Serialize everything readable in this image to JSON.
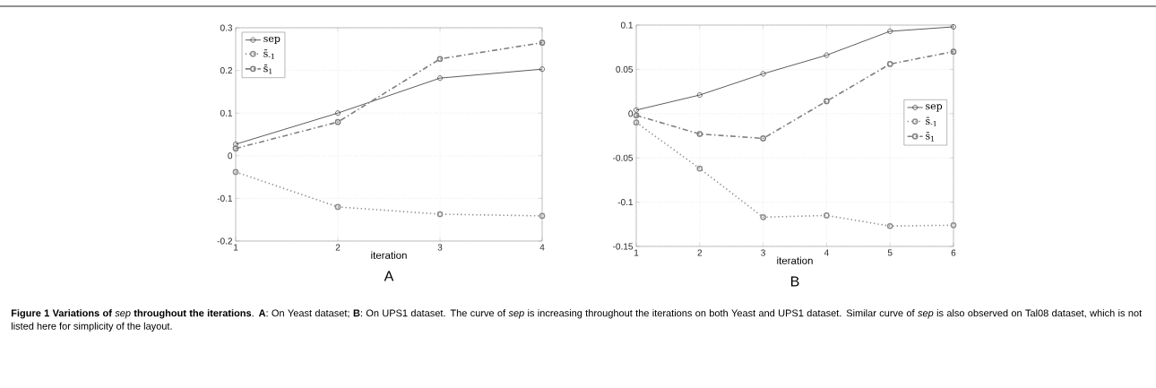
{
  "chart_data": [
    {
      "type": "line",
      "title": "A",
      "xlabel": "iteration",
      "x": [
        1,
        2,
        3,
        4
      ],
      "xlim": [
        1,
        4
      ],
      "xticks": [
        1,
        2,
        3,
        4
      ],
      "ylim": [
        -0.2,
        0.3
      ],
      "yticks": [
        -0.2,
        -0.1,
        0,
        0.1,
        0.2,
        0.3
      ],
      "grid": true,
      "legend": "top left",
      "series": [
        {
          "name": "sep",
          "color": "#333333",
          "marker": "circle",
          "line_style": "solid",
          "values": [
            0.027,
            0.1,
            0.182,
            0.203
          ]
        },
        {
          "name": "s̄$_{-1}$",
          "color": "#8c8c8c",
          "marker": "circle",
          "line_style": "dotted",
          "values": [
            -0.038,
            -0.12,
            -0.137,
            -0.141
          ]
        },
        {
          "name": "s̄$_{1}$",
          "color": "#7f7f7f",
          "marker": "circle",
          "line_style": "dashdot",
          "values": [
            0.017,
            0.079,
            0.227,
            0.265
          ]
        }
      ],
      "annotations": [
        "**Figure 1 Variations of** *sep* **throughout the iterations**. **A**: On Yeast dataset; **B**: On UPS1 dataset. The curve of *sep* is increasing throughout the iterations on both Yeast and UPS1 dataset. Similar curve of *sep* is also observed on Tal08 dataset, which is not listed here for simplicity of the layout."
      ]
    },
    {
      "type": "line",
      "title": "B",
      "xlabel": "iteration",
      "x": [
        1,
        2,
        3,
        4,
        5,
        6
      ],
      "xlim": [
        1,
        6
      ],
      "xticks": [
        1,
        2,
        3,
        4,
        5,
        6
      ],
      "ylim": [
        -0.15,
        0.1
      ],
      "yticks": [
        -0.15,
        -0.1,
        -0.05,
        0,
        0.05,
        0.1
      ],
      "grid": true,
      "legend": "right",
      "series": [
        {
          "name": "sep",
          "color": "#333333",
          "marker": "circle",
          "line_style": "solid",
          "values": [
            0.004,
            0.021,
            0.045,
            0.066,
            0.093,
            0.098
          ]
        },
        {
          "name": "s̄$_{-1}$",
          "color": "#8c8c8c",
          "marker": "circle",
          "line_style": "dotted",
          "values": [
            -0.01,
            -0.062,
            -0.117,
            -0.115,
            -0.127,
            -0.126
          ]
        },
        {
          "name": "s̄$_{1}$",
          "color": "#7f7f7f",
          "marker": "circle",
          "line_style": "dashdot",
          "values": [
            -0.002,
            -0.023,
            -0.028,
            0.014,
            0.056,
            0.07
          ]
        }
      ]
    }
  ]
}
